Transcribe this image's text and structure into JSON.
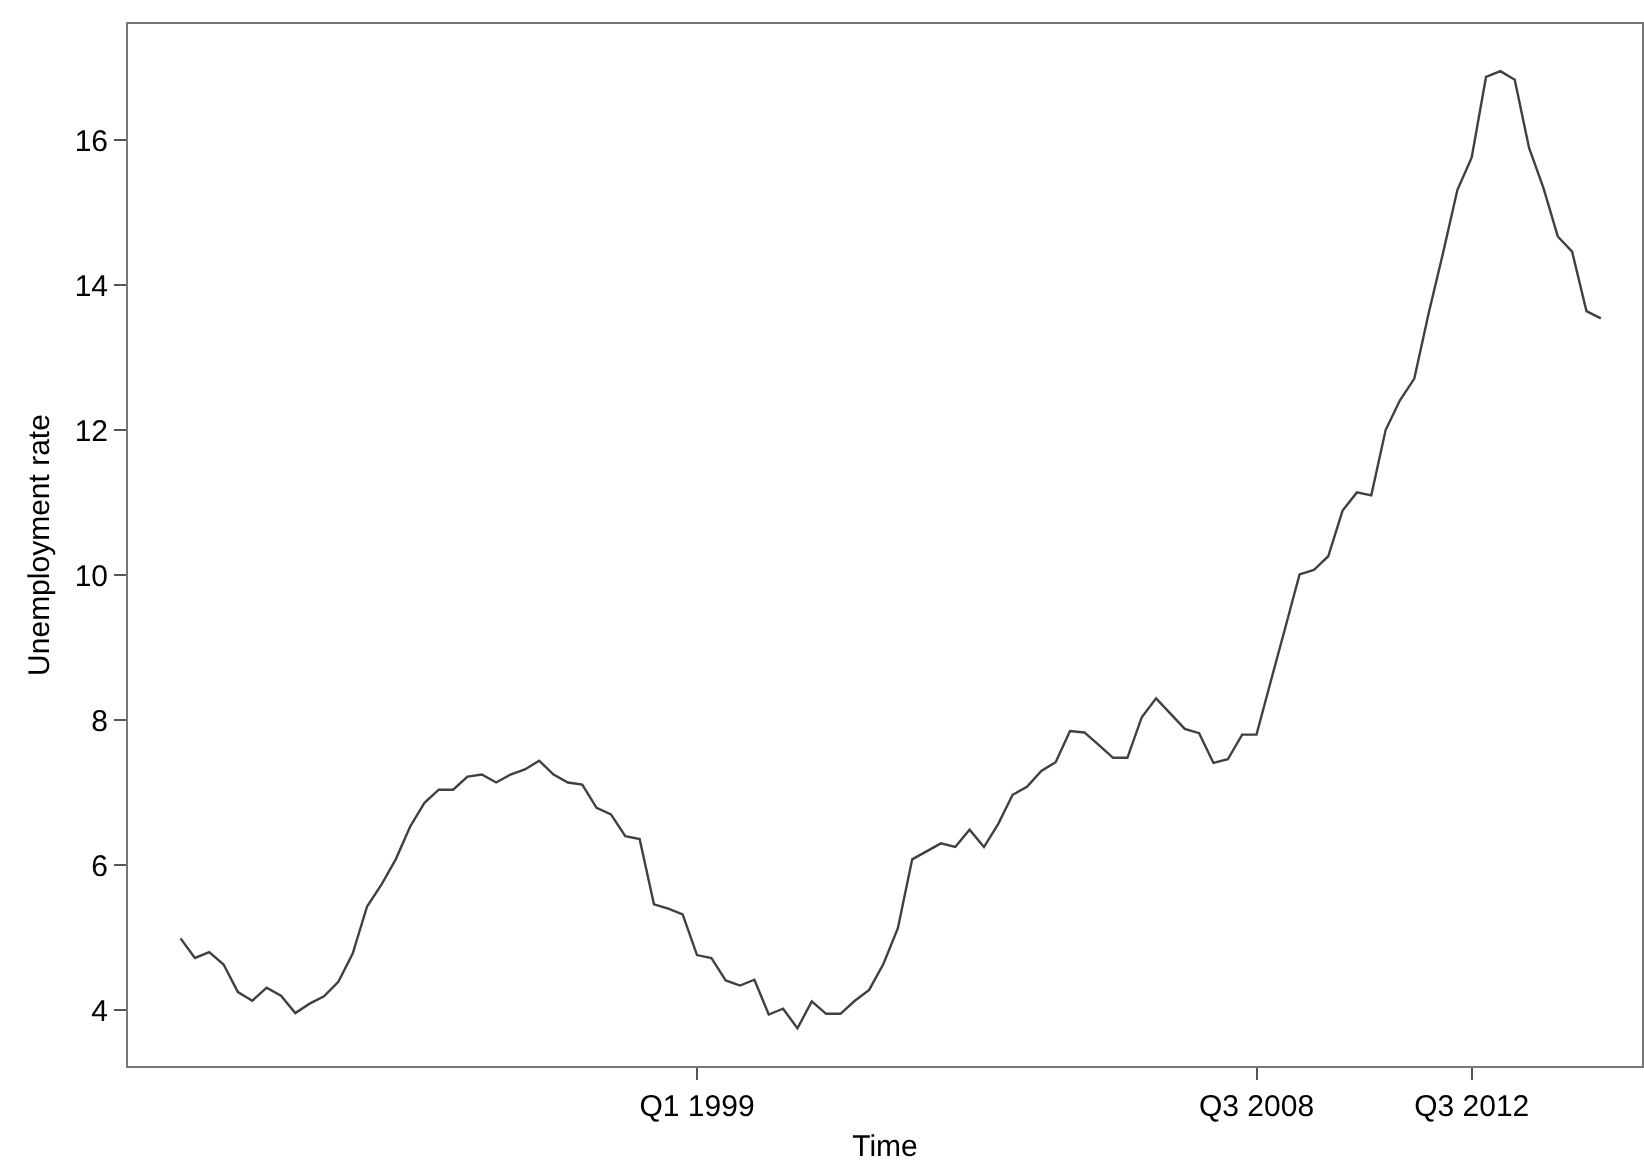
{
  "chart_data": {
    "type": "line",
    "xlabel": "Time",
    "ylabel": "Unemployment rate",
    "categories": [
      null,
      null,
      null,
      null,
      null,
      null,
      null,
      null,
      null,
      null,
      null,
      null,
      null,
      null,
      null,
      null,
      null,
      null,
      null,
      null,
      null,
      null,
      null,
      null,
      null,
      null,
      null,
      null,
      null,
      null,
      null,
      null,
      null,
      null,
      null,
      null,
      "Q1 1999",
      null,
      null,
      null,
      null,
      null,
      null,
      null,
      null,
      null,
      null,
      null,
      null,
      null,
      null,
      null,
      null,
      null,
      null,
      null,
      null,
      null,
      null,
      null,
      null,
      null,
      null,
      null,
      null,
      null,
      null,
      null,
      null,
      null,
      null,
      null,
      null,
      null,
      null,
      "Q3 2008",
      null,
      null,
      null,
      null,
      null,
      null,
      null,
      null,
      null,
      null,
      null,
      null,
      null,
      null,
      "Q3 2012",
      null,
      null,
      null,
      null,
      null,
      null,
      null,
      null,
      null
    ],
    "series": [
      {
        "color": "#404040",
        "values": [
          4.99,
          4.72,
          4.8,
          4.63,
          4.25,
          4.13,
          4.31,
          4.2,
          3.96,
          4.09,
          4.19,
          4.39,
          4.78,
          5.43,
          5.73,
          6.08,
          6.53,
          6.86,
          7.04,
          7.04,
          7.22,
          7.25,
          7.14,
          7.25,
          7.32,
          7.44,
          7.25,
          7.14,
          7.11,
          6.79,
          6.7,
          6.4,
          6.36,
          5.46,
          5.4,
          5.32,
          4.76,
          4.72,
          4.41,
          4.34,
          4.42,
          3.94,
          4.02,
          3.75,
          4.12,
          3.95,
          3.95,
          4.13,
          4.28,
          4.64,
          5.13,
          6.08,
          6.19,
          6.3,
          6.25,
          6.49,
          6.25,
          6.57,
          6.97,
          7.08,
          7.3,
          7.42,
          7.85,
          7.83,
          7.66,
          7.48,
          7.48,
          8.04,
          8.3,
          8.09,
          7.88,
          7.82,
          7.41,
          7.46,
          7.8,
          7.8,
          8.54,
          9.27,
          10.01,
          10.07,
          10.26,
          10.89,
          11.14,
          11.1,
          12.0,
          12.41,
          12.71,
          13.61,
          14.44,
          15.31,
          15.76,
          16.87,
          16.95,
          16.83,
          15.89,
          15.34,
          14.67,
          14.46,
          13.64,
          13.54
        ]
      }
    ],
    "ylim": [
      3.23,
      17.6
    ],
    "yticks": [
      4,
      6,
      8,
      10,
      12,
      14,
      16
    ],
    "marker": "none",
    "line_style": "solid"
  }
}
